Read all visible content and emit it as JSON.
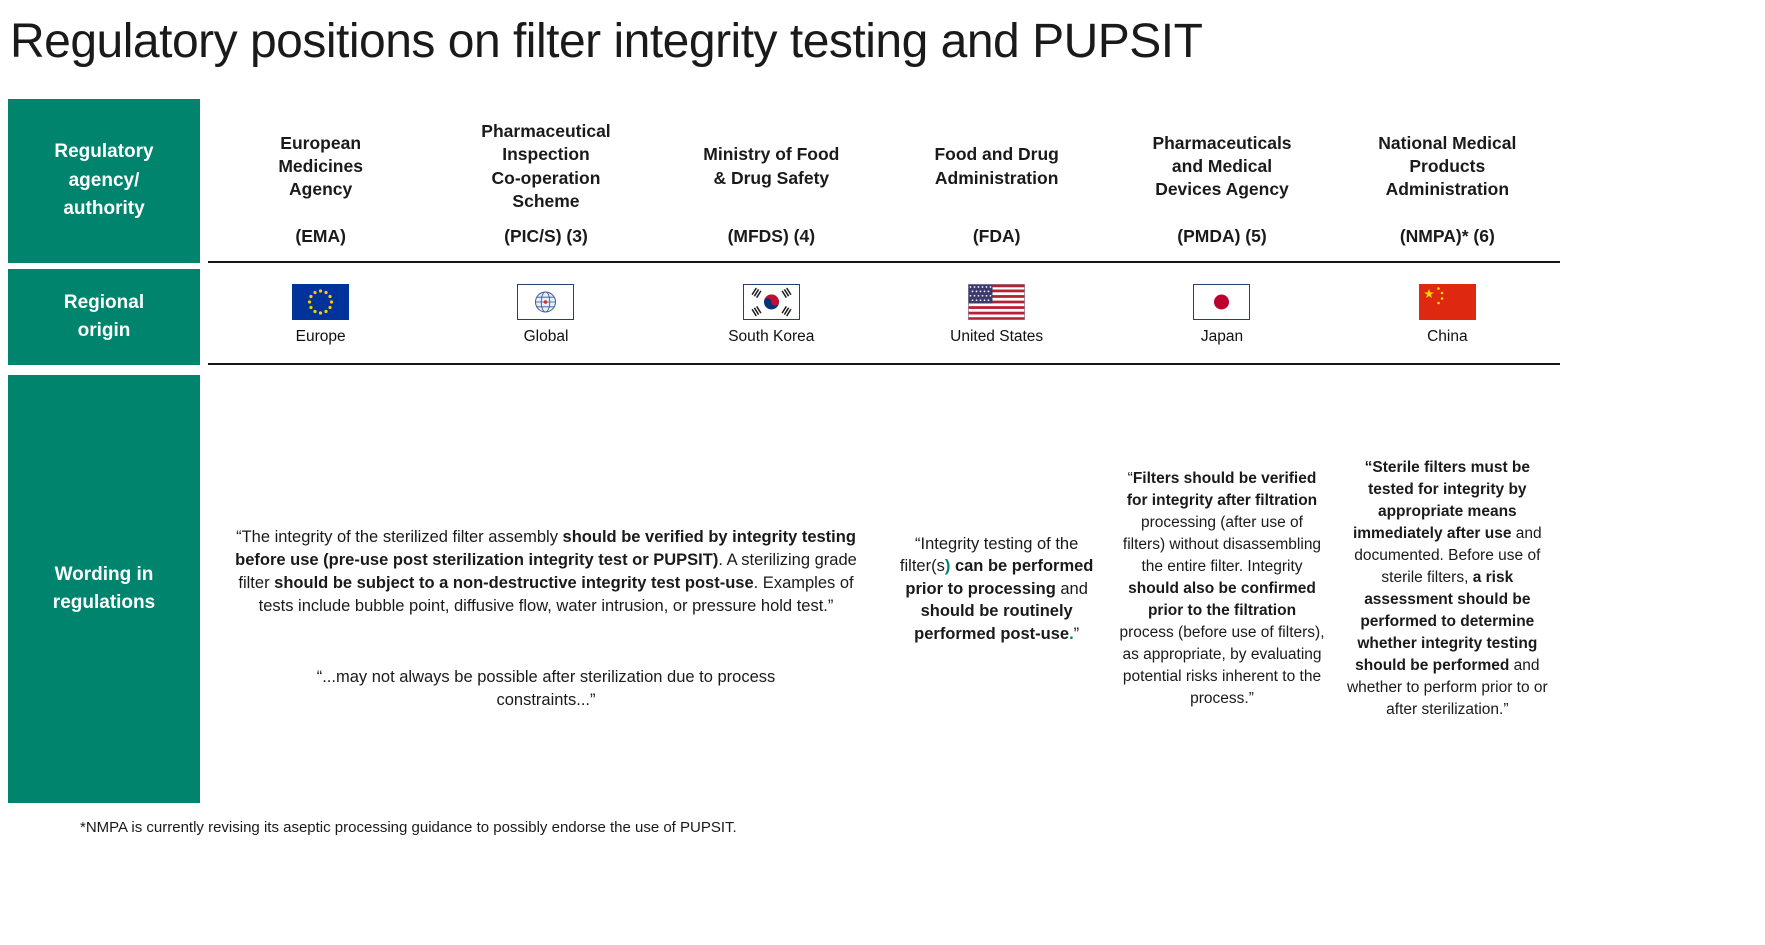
{
  "page": {
    "title": "Regulatory positions on filter integrity testing and PUPSIT",
    "footnote": "*NMPA is currently revising its aseptic processing guidance to possibly endorse the use of PUPSIT."
  },
  "colors": {
    "teal": "#00846E",
    "rule": "#161616",
    "text": "#1a1a1a"
  },
  "row_headers": {
    "agency": "Regulatory\nagency/\nauthority",
    "region": "Regional\norigin",
    "wording": "Wording in\nregulations"
  },
  "columns": [
    {
      "name": "European\nMedicines\nAgency",
      "abbr": "(EMA)",
      "region": "Europe",
      "flag_icon": "eu-flag-icon"
    },
    {
      "name": "Pharmaceutical\nInspection\nCo-operation\nScheme",
      "abbr": "(PIC/S) (3)",
      "region": "Global",
      "flag_icon": "pics-globe-flag-icon"
    },
    {
      "name": "Ministry of Food\n& Drug Safety",
      "abbr": "(MFDS) (4)",
      "region": "South Korea",
      "flag_icon": "south-korea-flag-icon"
    },
    {
      "name": "Food and Drug\nAdministration",
      "abbr": "(FDA)",
      "region": "United States",
      "flag_icon": "us-flag-icon"
    },
    {
      "name": "Pharmaceuticals\nand Medical\nDevices Agency",
      "abbr": "(PMDA) (5)",
      "region": "Japan",
      "flag_icon": "japan-flag-icon"
    },
    {
      "name": "National Medical\nProducts\nAdministration",
      "abbr": "(NMPA)* (6)",
      "region": "China",
      "flag_icon": "china-flag-icon"
    }
  ],
  "wording": {
    "shared": {
      "p1": [
        {
          "text": "“The integrity of the sterilized filter assembly "
        },
        {
          "text": "should be verified by integrity testing before use (pre-use post sterilization integrity test or PUPSIT)",
          "bold": true
        },
        {
          "text": ". A sterilizing grade filter "
        },
        {
          "text": "should be subject to a non-destructive integrity test post-use",
          "bold": true
        },
        {
          "text": ". Examples of tests include bubble point, diffusive flow, water intrusion, or pressure hold test.”"
        }
      ],
      "p2": [
        {
          "text": "“...may not always be possible after sterilization due to process constraints...”"
        }
      ]
    },
    "fda": [
      {
        "text": "“Integrity testing of the filter(s"
      },
      {
        "text": ")",
        "teal": true
      },
      {
        "text": " "
      },
      {
        "text": "can be performed prior to processing",
        "bold": true
      },
      {
        "text": " and "
      },
      {
        "text": "should be routinely performed post-use",
        "bold": true
      },
      {
        "text": ".",
        "teal": true
      },
      {
        "text": "”"
      }
    ],
    "pmda": [
      {
        "text": "“"
      },
      {
        "text": "Filters should be verified for integrity after filtration",
        "bold": true
      },
      {
        "text": " processing (after use of filters) without disassembling the entire filter. Integrity "
      },
      {
        "text": "should also be confirmed prior to the filtration",
        "bold": true
      },
      {
        "text": " process (before use of filters), as appropriate, by evaluating potential risks inherent to the process.”"
      }
    ],
    "nmpa": [
      {
        "text": "“Sterile filters must be tested for integrity by appropriate means immediately after use",
        "bold": true
      },
      {
        "text": " and documented. Before use of sterile filters, "
      },
      {
        "text": "a risk assessment should be performed to determine whether integrity testing should be performed",
        "bold": true
      },
      {
        "text": " and whether to perform prior to or after sterilization.”"
      }
    ]
  }
}
